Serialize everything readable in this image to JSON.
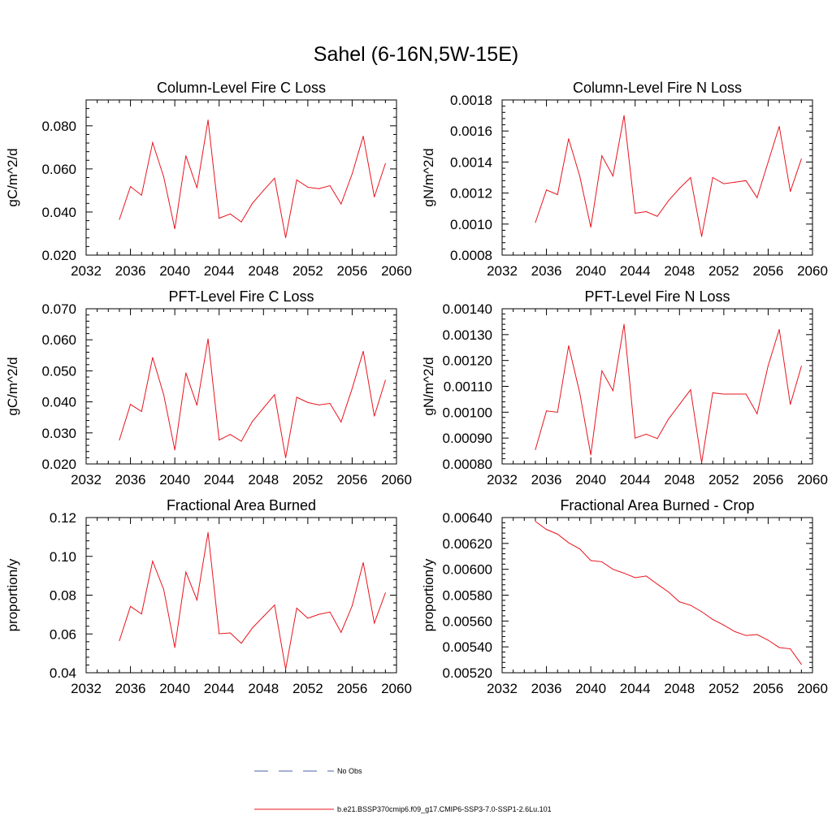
{
  "figure_title": "Sahel (6-16N,5W-15E)",
  "colors": {
    "model": "#e8141e",
    "obs": "#4a5fa6"
  },
  "legend": {
    "entries": [
      {
        "label": "No Obs",
        "color": "#4a5fa6",
        "style": "dashed"
      },
      {
        "label": "b.e21.BSSP370cmip6.f09_g17.CMIP6-SSP3-7.0-SSP1-2.6Lu.101",
        "color": "#e8141e",
        "style": "solid"
      }
    ]
  },
  "chart_data": [
    {
      "type": "line",
      "title": "Column-Level Fire C Loss",
      "xlabel": "",
      "ylabel": "gC/m^2/d",
      "xlim": [
        2032,
        2060
      ],
      "ylim": [
        0.02,
        0.092
      ],
      "xticks": [
        2032,
        2036,
        2040,
        2044,
        2048,
        2052,
        2056,
        2060
      ],
      "xtick_labels": [
        "2032",
        "2036",
        "2040",
        "2044",
        "2048",
        "2052",
        "2056",
        "2060"
      ],
      "yticks": [
        0.02,
        0.04,
        0.06,
        0.08
      ],
      "ytick_labels": [
        "0.020",
        "0.040",
        "0.060",
        "0.080"
      ],
      "x": [
        2035,
        2036,
        2037,
        2038,
        2039,
        2040,
        2041,
        2042,
        2043,
        2044,
        2045,
        2046,
        2047,
        2048,
        2049,
        2050,
        2051,
        2052,
        2053,
        2054,
        2055,
        2056,
        2057,
        2058,
        2059
      ],
      "series": [
        {
          "values": [
            0.0365,
            0.0518,
            0.0478,
            0.0722,
            0.0563,
            0.0322,
            0.0661,
            0.0512,
            0.0827,
            0.0371,
            0.0391,
            0.0354,
            0.044,
            0.05,
            0.0557,
            0.0281,
            0.0549,
            0.0515,
            0.0508,
            0.0522,
            0.0437,
            0.0577,
            0.0752,
            0.047,
            0.0625
          ]
        }
      ]
    },
    {
      "type": "line",
      "title": "Column-Level Fire N Loss",
      "xlabel": "",
      "ylabel": "gN/m^2/d",
      "xlim": [
        2032,
        2060
      ],
      "ylim": [
        0.0008,
        0.0018
      ],
      "xticks": [
        2032,
        2036,
        2040,
        2044,
        2048,
        2052,
        2056,
        2060
      ],
      "xtick_labels": [
        "2032",
        "2036",
        "2040",
        "2044",
        "2048",
        "2052",
        "2056",
        "2060"
      ],
      "yticks": [
        0.0008,
        0.001,
        0.0012,
        0.0014,
        0.0016,
        0.0018
      ],
      "ytick_labels": [
        "0.0008",
        "0.0010",
        "0.0012",
        "0.0014",
        "0.0016",
        "0.0018"
      ],
      "x": [
        2035,
        2036,
        2037,
        2038,
        2039,
        2040,
        2041,
        2042,
        2043,
        2044,
        2045,
        2046,
        2047,
        2048,
        2049,
        2050,
        2051,
        2052,
        2053,
        2054,
        2055,
        2056,
        2057,
        2058,
        2059
      ],
      "series": [
        {
          "values": [
            0.00101,
            0.00122,
            0.00119,
            0.00155,
            0.00131,
            0.00098,
            0.00144,
            0.00131,
            0.0017,
            0.00107,
            0.00108,
            0.00105,
            0.00115,
            0.00123,
            0.0013,
            0.00092,
            0.0013,
            0.00126,
            0.00127,
            0.00128,
            0.00117,
            0.0014,
            0.00163,
            0.00121,
            0.00142
          ]
        }
      ]
    },
    {
      "type": "line",
      "title": "PFT-Level Fire C Loss",
      "xlabel": "",
      "ylabel": "gC/m^2/d",
      "xlim": [
        2032,
        2060
      ],
      "ylim": [
        0.02,
        0.07
      ],
      "xticks": [
        2032,
        2036,
        2040,
        2044,
        2048,
        2052,
        2056,
        2060
      ],
      "xtick_labels": [
        "2032",
        "2036",
        "2040",
        "2044",
        "2048",
        "2052",
        "2056",
        "2060"
      ],
      "yticks": [
        0.02,
        0.03,
        0.04,
        0.05,
        0.06,
        0.07
      ],
      "ytick_labels": [
        "0.020",
        "0.030",
        "0.040",
        "0.050",
        "0.060",
        "0.070"
      ],
      "x": [
        2035,
        2036,
        2037,
        2038,
        2039,
        2040,
        2041,
        2042,
        2043,
        2044,
        2045,
        2046,
        2047,
        2048,
        2049,
        2050,
        2051,
        2052,
        2053,
        2054,
        2055,
        2056,
        2057,
        2058,
        2059
      ],
      "series": [
        {
          "values": [
            0.0277,
            0.0392,
            0.0369,
            0.0543,
            0.0423,
            0.0245,
            0.0493,
            0.0389,
            0.0603,
            0.0277,
            0.0295,
            0.0273,
            0.0337,
            0.038,
            0.0423,
            0.022,
            0.0415,
            0.0398,
            0.039,
            0.0395,
            0.0335,
            0.0443,
            0.0563,
            0.0354,
            0.047
          ]
        }
      ]
    },
    {
      "type": "line",
      "title": "PFT-Level Fire N Loss",
      "xlabel": "",
      "ylabel": "gN/m^2/d",
      "xlim": [
        2032,
        2060
      ],
      "ylim": [
        0.0008,
        0.0014
      ],
      "xticks": [
        2032,
        2036,
        2040,
        2044,
        2048,
        2052,
        2056,
        2060
      ],
      "xtick_labels": [
        "2032",
        "2036",
        "2040",
        "2044",
        "2048",
        "2052",
        "2056",
        "2060"
      ],
      "yticks": [
        0.0008,
        0.0009,
        0.001,
        0.0011,
        0.0012,
        0.0013,
        0.0014
      ],
      "ytick_labels": [
        "0.00080",
        "0.00090",
        "0.00100",
        "0.00110",
        "0.00120",
        "0.00130",
        "0.00140"
      ],
      "x": [
        2035,
        2036,
        2037,
        2038,
        2039,
        2040,
        2041,
        2042,
        2043,
        2044,
        2045,
        2046,
        2047,
        2048,
        2049,
        2050,
        2051,
        2052,
        2053,
        2054,
        2055,
        2056,
        2057,
        2058,
        2059
      ],
      "series": [
        {
          "values": [
            0.000855,
            0.001005,
            0.001,
            0.001257,
            0.001075,
            0.000835,
            0.00116,
            0.001083,
            0.00134,
            0.0009,
            0.000915,
            0.000898,
            0.000973,
            0.00103,
            0.001087,
            0.000805,
            0.001075,
            0.00107,
            0.00107,
            0.00107,
            0.000994,
            0.00118,
            0.00132,
            0.00103,
            0.001178
          ]
        }
      ]
    },
    {
      "type": "line",
      "title": "Fractional Area Burned",
      "xlabel": "",
      "ylabel": "proportion/y",
      "xlim": [
        2032,
        2060
      ],
      "ylim": [
        0.04,
        0.12
      ],
      "xticks": [
        2032,
        2036,
        2040,
        2044,
        2048,
        2052,
        2056,
        2060
      ],
      "xtick_labels": [
        "2032",
        "2036",
        "2040",
        "2044",
        "2048",
        "2052",
        "2056",
        "2060"
      ],
      "yticks": [
        0.04,
        0.06,
        0.08,
        0.1,
        0.12
      ],
      "ytick_labels": [
        "0.04",
        "0.06",
        "0.08",
        "0.10",
        "0.12"
      ],
      "x": [
        2035,
        2036,
        2037,
        2038,
        2039,
        2040,
        2041,
        2042,
        2043,
        2044,
        2045,
        2046,
        2047,
        2048,
        2049,
        2050,
        2051,
        2052,
        2053,
        2054,
        2055,
        2056,
        2057,
        2058,
        2059
      ],
      "series": [
        {
          "values": [
            0.0565,
            0.0742,
            0.0703,
            0.0975,
            0.0829,
            0.053,
            0.0919,
            0.0775,
            0.1123,
            0.0601,
            0.0605,
            0.0552,
            0.0631,
            0.069,
            0.0749,
            0.0418,
            0.0733,
            0.0681,
            0.0701,
            0.0713,
            0.0608,
            0.0745,
            0.0968,
            0.0656,
            0.0812
          ]
        }
      ]
    },
    {
      "type": "line",
      "title": "Fractional Area Burned - Crop",
      "xlabel": "",
      "ylabel": "proportion/y",
      "xlim": [
        2032,
        2060
      ],
      "ylim": [
        0.0052,
        0.0064
      ],
      "xticks": [
        2032,
        2036,
        2040,
        2044,
        2048,
        2052,
        2056,
        2060
      ],
      "xtick_labels": [
        "2032",
        "2036",
        "2040",
        "2044",
        "2048",
        "2052",
        "2056",
        "2060"
      ],
      "yticks": [
        0.0052,
        0.0054,
        0.0056,
        0.0058,
        0.006,
        0.0062,
        0.0064
      ],
      "ytick_labels": [
        "0.00520",
        "0.00540",
        "0.00560",
        "0.00580",
        "0.00600",
        "0.00620",
        "0.00640"
      ],
      "x": [
        2035,
        2036,
        2037,
        2038,
        2039,
        2040,
        2041,
        2042,
        2043,
        2044,
        2045,
        2046,
        2047,
        2048,
        2049,
        2050,
        2051,
        2052,
        2053,
        2054,
        2055,
        2056,
        2057,
        2058,
        2059
      ],
      "series": [
        {
          "values": [
            0.00637,
            0.006308,
            0.006272,
            0.006205,
            0.006158,
            0.006068,
            0.006058,
            0.006,
            0.00597,
            0.005935,
            0.005948,
            0.005885,
            0.005825,
            0.005748,
            0.005722,
            0.005672,
            0.005612,
            0.005568,
            0.005518,
            0.005488,
            0.005495,
            0.005452,
            0.005395,
            0.005385,
            0.005265
          ]
        }
      ]
    }
  ]
}
